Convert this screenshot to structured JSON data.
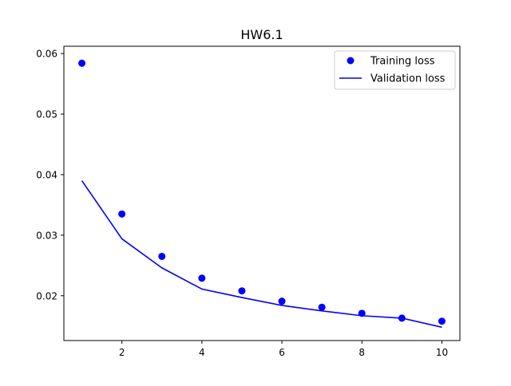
{
  "chart_data": {
    "type": "scatter",
    "title": "HW6.1",
    "xlabel": "",
    "ylabel": "",
    "xlim": [
      0.55,
      10.45
    ],
    "ylim": [
      0.0126,
      0.0612
    ],
    "x_ticks": [
      2,
      4,
      6,
      8,
      10
    ],
    "y_ticks": [
      0.02,
      0.03,
      0.04,
      0.05,
      0.06
    ],
    "x_tick_labels": [
      "2",
      "4",
      "6",
      "8",
      "10"
    ],
    "y_tick_labels": [
      "0.02",
      "0.03",
      "0.04",
      "0.05",
      "0.06"
    ],
    "grid": false,
    "legend_position": "top-right",
    "series": [
      {
        "name": "Training loss",
        "kind": "points",
        "color": "#0000ff",
        "x": [
          1,
          2,
          3,
          4,
          5,
          6,
          7,
          8,
          9,
          10
        ],
        "y": [
          0.0584,
          0.0335,
          0.0265,
          0.0229,
          0.0208,
          0.0191,
          0.0181,
          0.0171,
          0.0163,
          0.0158
        ]
      },
      {
        "name": "Validation loss",
        "kind": "line",
        "color": "#0000ff",
        "x": [
          1,
          2,
          3,
          4,
          5,
          6,
          7,
          8,
          9,
          10
        ],
        "y": [
          0.039,
          0.0294,
          0.0246,
          0.0211,
          0.0197,
          0.0184,
          0.0175,
          0.0167,
          0.0163,
          0.0148
        ]
      }
    ]
  }
}
